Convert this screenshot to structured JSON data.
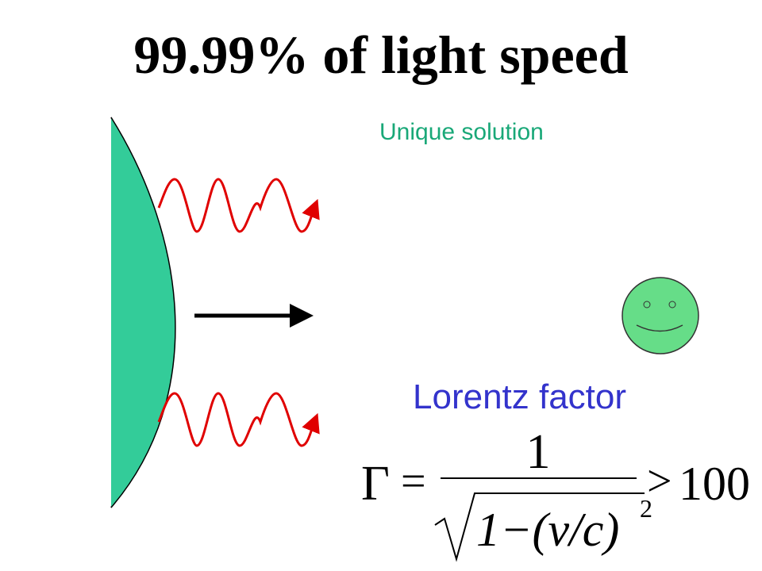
{
  "title": "99.99% of light speed",
  "labels": {
    "top": "Unique solution",
    "bottom": "Lorentz factor"
  },
  "formula": {
    "lhs": "Γ",
    "equals": "=",
    "numerator": "1",
    "denominator": "1−(v/c)",
    "exponent": "2",
    "relation": ">",
    "bound": "100"
  }
}
